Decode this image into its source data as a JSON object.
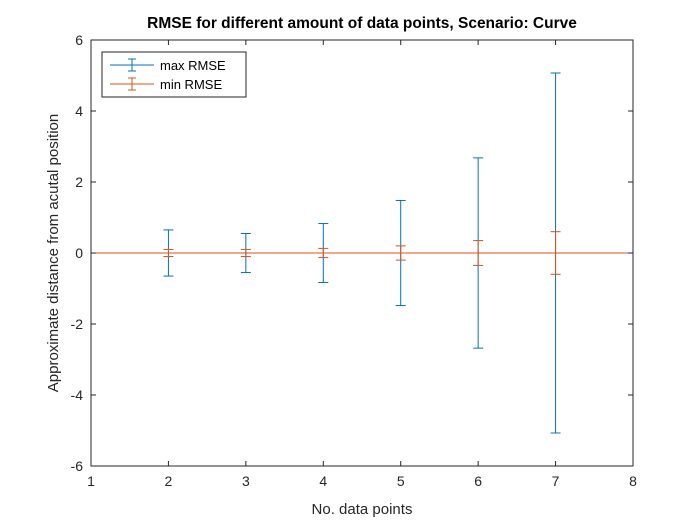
{
  "chart_data": {
    "type": "errorbar",
    "title": "RMSE for different amount of data points, Scenario: Curve",
    "xlabel": "No. data points",
    "ylabel": "Approximate distance from acutal position",
    "xlim": [
      1,
      8
    ],
    "ylim": [
      -6,
      6
    ],
    "xticks": [
      1,
      2,
      3,
      4,
      5,
      6,
      7,
      8
    ],
    "yticks": [
      -6,
      -4,
      -2,
      0,
      2,
      4,
      6
    ],
    "grid": false,
    "legend_position": "top-left",
    "x": [
      2,
      3,
      4,
      5,
      6,
      7
    ],
    "series": [
      {
        "name": "max RMSE",
        "color": "#0072BD",
        "y": [
          0,
          0,
          0,
          0,
          0,
          0
        ],
        "error": [
          0.65,
          0.55,
          0.83,
          1.48,
          2.68,
          5.07
        ]
      },
      {
        "name": "min RMSE",
        "color": "#D95319",
        "y": [
          0,
          0,
          0,
          0,
          0,
          0
        ],
        "error": [
          0.1,
          0.1,
          0.13,
          0.2,
          0.35,
          0.6
        ]
      }
    ]
  }
}
